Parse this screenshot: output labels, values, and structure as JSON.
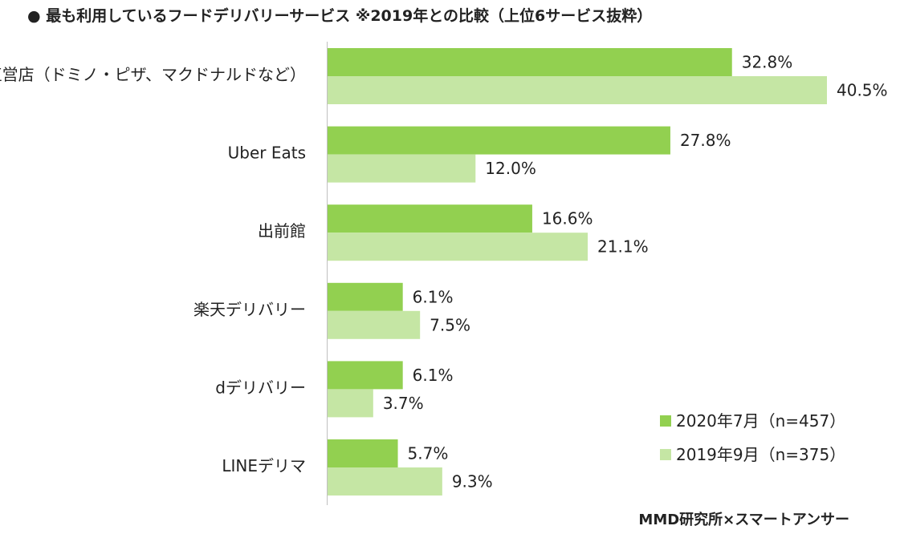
{
  "chart_data": {
    "type": "bar",
    "orientation": "horizontal",
    "title": "●  最も利用しているフードデリバリーサービス ※2019年との比較（上位6サービス抜粋）",
    "categories": [
      "直営店（ドミノ・ピザ、マクドナルドなど）",
      "Uber Eats",
      "出前館",
      "楽天デリバリー",
      "dデリバリー",
      "LINEデリマ"
    ],
    "series": [
      {
        "name": "2020年7月（n=457）",
        "values": [
          32.8,
          27.8,
          16.6,
          6.1,
          6.1,
          5.7
        ],
        "labels": [
          "32.8%",
          "27.8%",
          "16.6%",
          "6.1%",
          "6.1%",
          "5.7%"
        ],
        "color": "#92d050"
      },
      {
        "name": "2019年9月（n=375）",
        "values": [
          40.5,
          12.0,
          21.1,
          7.5,
          3.7,
          9.3
        ],
        "labels": [
          "40.5%",
          "12.0%",
          "21.1%",
          "7.5%",
          "3.7%",
          "9.3%"
        ],
        "color": "#c5e6a4"
      }
    ],
    "xlabel": "",
    "ylabel": "",
    "xlim": [
      0,
      40.5
    ],
    "grid": false,
    "legend_position": "bottom-right"
  },
  "source": "MMD研究所×スマートアンサー",
  "colors": {
    "text": "#222222",
    "axis": "#bfbfbf"
  }
}
